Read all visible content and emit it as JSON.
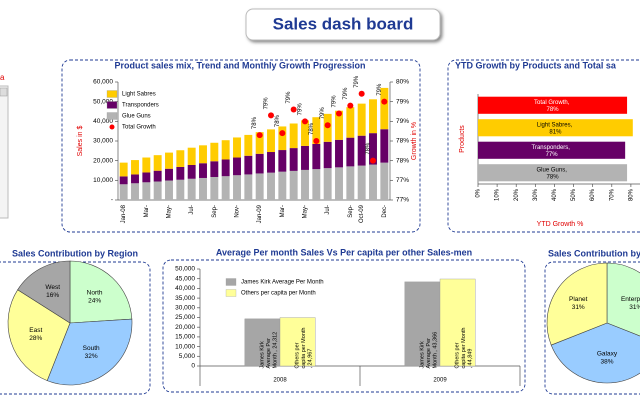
{
  "title": "Sales dash board",
  "side_label": "a",
  "chart_data": [
    {
      "type": "bar",
      "stacked": true,
      "title": "Product sales mix, Trend and Monthly Growth Progression",
      "ylabel": "Sales in $",
      "y2label": "Growth in %",
      "categories": [
        "Jan-08",
        null,
        "Mar-",
        null,
        "May-",
        null,
        "Jul-",
        null,
        "Sep-",
        null,
        "Nov-",
        null,
        "Jan-09",
        null,
        "Mar-",
        null,
        "May-",
        null,
        "Jul-",
        null,
        "Sep-",
        "Oct-09",
        null,
        "Dec-"
      ],
      "series": [
        {
          "name": "Light Sabres",
          "color": "#ffcc00",
          "values": [
            7000,
            7300,
            7600,
            7900,
            8200,
            8500,
            8800,
            9100,
            9400,
            9800,
            10200,
            10600,
            11000,
            11500,
            12000,
            12500,
            13000,
            13600,
            14200,
            14800,
            15500,
            16300,
            17200,
            21000
          ]
        },
        {
          "name": "Transponders",
          "color": "#660066",
          "values": [
            4000,
            4500,
            5000,
            5500,
            6000,
            6500,
            7000,
            7500,
            8000,
            8500,
            9000,
            9500,
            10000,
            10500,
            11000,
            11600,
            12200,
            12800,
            13400,
            14000,
            14600,
            15200,
            16000,
            17000
          ]
        },
        {
          "name": "Glue Guns",
          "color": "#b3b3b3",
          "values": [
            8000,
            8500,
            9000,
            9400,
            9900,
            10300,
            10800,
            11200,
            11700,
            12100,
            12600,
            13000,
            13500,
            13900,
            14400,
            14800,
            15300,
            15700,
            16200,
            16600,
            17100,
            17500,
            18000,
            19000
          ]
        },
        {
          "name": "Total Growth",
          "type": "line",
          "axis": "y2",
          "color": "#ff0000",
          "values": [
            null,
            null,
            null,
            null,
            null,
            null,
            null,
            null,
            null,
            null,
            null,
            null,
            78.35,
            78.85,
            78.4,
            79.0,
            78.7,
            78.2,
            78.6,
            78.9,
            79.1,
            79.4,
            77.7,
            79.2
          ],
          "value_labels": [
            null,
            null,
            null,
            null,
            null,
            null,
            null,
            null,
            null,
            null,
            null,
            null,
            "78%",
            "79%",
            "78%",
            "79%",
            "79%",
            "78%",
            "79%",
            "79%",
            "79%",
            "79%",
            "78%",
            "79%"
          ]
        }
      ],
      "ylim": [
        0,
        60000
      ],
      "yticks": [
        {
          "value": 0,
          "label": "-"
        },
        {
          "value": 10000,
          "label": "10,000"
        },
        {
          "value": 20000,
          "label": "20,000"
        },
        {
          "value": 30000,
          "label": "30,000"
        },
        {
          "value": 40000,
          "label": "40,000"
        },
        {
          "value": 50000,
          "label": "50,000"
        },
        {
          "value": 60000,
          "label": "60,000"
        }
      ],
      "y2lim": [
        76.7,
        79.7
      ],
      "y2ticks": [
        {
          "value": 76.7,
          "label": "77%"
        },
        {
          "value": 77.2,
          "label": "77%"
        },
        {
          "value": 77.7,
          "label": "78%"
        },
        {
          "value": 78.2,
          "label": "78%"
        },
        {
          "value": 78.7,
          "label": "79%"
        },
        {
          "value": 79.2,
          "label": "79%"
        },
        {
          "value": 79.7,
          "label": "80%"
        }
      ]
    },
    {
      "type": "hbar",
      "title": "YTD Growth by Products and Total sa",
      "xlabel": "YTD Growth %",
      "ylabel": "Products",
      "values": [
        78,
        81,
        77,
        78
      ],
      "value_labels": [
        "Total Growth, 78%",
        "Light Sabres, 81%",
        "Transponders, 77%",
        "Glue Guns, 78%"
      ],
      "colors": [
        "#ff0000",
        "#ffcc00",
        "#660066",
        "#b3b3b3"
      ],
      "label_colors": [
        "#ffffff",
        "#000000",
        "#ffffff",
        "#000000"
      ],
      "xlim": [
        0,
        90
      ],
      "xticks": [
        {
          "value": 0,
          "label": "0%"
        },
        {
          "value": 10,
          "label": "10%"
        },
        {
          "value": 20,
          "label": "20%"
        },
        {
          "value": 30,
          "label": "30%"
        },
        {
          "value": 40,
          "label": "40%"
        },
        {
          "value": 50,
          "label": "50%"
        },
        {
          "value": 60,
          "label": "60%"
        },
        {
          "value": 70,
          "label": "70%"
        },
        {
          "value": 80,
          "label": "80%"
        }
      ]
    },
    {
      "type": "pie",
      "title": "Sales Contribution by Region",
      "categories": [
        "North",
        "South",
        "East",
        "West"
      ],
      "values": [
        24,
        32,
        28,
        16
      ],
      "value_labels": [
        "24%",
        "32%",
        "28%",
        "16%"
      ],
      "colors": [
        "#ccffcc",
        "#99ccff",
        "#ffff99",
        "#a6a6a6"
      ]
    },
    {
      "type": "bar",
      "title": "Average Per month Sales  Vs Per capita per other Sales-men",
      "categories": [
        "2008",
        "2009"
      ],
      "series": [
        {
          "name": "James Kirk  Average Per Month",
          "color": "#a6a6a6",
          "values": [
            24312,
            43366
          ],
          "value_labels": [
            "James Kirk  Average Per Month , 24,312",
            "James Kirk  Average Per Month , 43,366"
          ]
        },
        {
          "name": "Others per capita per Month",
          "color": "#ffff99",
          "values": [
            24967,
            44849
          ],
          "value_labels": [
            "Others per capita per Month , 24,967",
            "Others per capita per Month , 44,849"
          ]
        }
      ],
      "ylim": [
        0,
        50000
      ],
      "yticks": [
        0,
        {
          "value": 5000,
          "label": "5,000"
        },
        {
          "value": 10000,
          "label": "10,000"
        },
        {
          "value": 15000,
          "label": "15,000"
        },
        {
          "value": 20000,
          "label": "20,000"
        },
        {
          "value": 25000,
          "label": "25,000"
        },
        {
          "value": 30000,
          "label": "30,000"
        },
        {
          "value": 35000,
          "label": "35,000"
        },
        {
          "value": 40000,
          "label": "40,000"
        },
        {
          "value": 45000,
          "label": "45,000"
        },
        {
          "value": 50000,
          "label": "50,000"
        }
      ]
    },
    {
      "type": "pie",
      "title": "Sales Contribution by",
      "categories": [
        "Enterprise",
        "Galaxy",
        "Planet"
      ],
      "values": [
        31,
        38,
        31
      ],
      "value_labels": [
        "31%",
        "38%",
        "31%"
      ],
      "colors": [
        "#ccffcc",
        "#99ccff",
        "#ffff99"
      ]
    }
  ]
}
